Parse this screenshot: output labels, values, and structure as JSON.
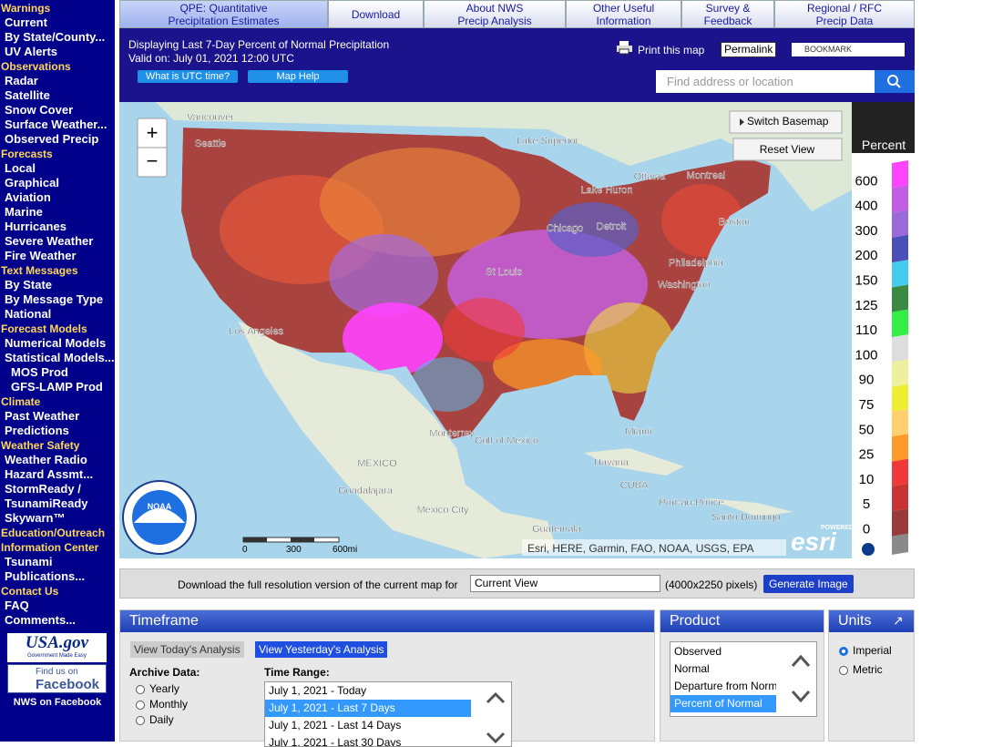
{
  "sidebar": {
    "sections": [
      {
        "title": "Warnings",
        "items": [
          "Current",
          "By State/County...",
          "UV Alerts"
        ]
      },
      {
        "title": "Observations",
        "items": [
          "Radar",
          "Satellite",
          "Snow Cover",
          "Surface Weather...",
          "Observed Precip"
        ]
      },
      {
        "title": "Forecasts",
        "items": [
          "Local",
          "Graphical",
          "Aviation",
          "Marine",
          "Hurricanes",
          "Severe Weather",
          "Fire Weather"
        ]
      },
      {
        "title": "Text Messages",
        "items": [
          "By State",
          "By Message Type",
          "National"
        ]
      },
      {
        "title": "Forecast Models",
        "items": [
          "Numerical Models",
          "Statistical Models..."
        ],
        "sub_items": [
          "MOS Prod",
          "GFS-LAMP Prod"
        ]
      },
      {
        "title": "Climate",
        "items": [
          "Past Weather",
          "Predictions"
        ]
      },
      {
        "title": "Weather Safety",
        "items": [
          "Weather Radio",
          "Hazard Assmt...",
          "StormReady / TsunamiReady",
          "Skywarn™"
        ]
      },
      {
        "title": "Education/Outreach",
        "items": []
      },
      {
        "title": "Information Center",
        "items": [
          "Tsunami",
          "Publications..."
        ]
      },
      {
        "title": "Contact Us",
        "items": [
          "FAQ",
          "Comments..."
        ]
      }
    ],
    "usagov": "USA.gov",
    "usagov_sub": "Government Made Easy",
    "facebook": [
      "Find us on",
      "Facebook"
    ],
    "facebook_caption": "NWS on Facebook"
  },
  "tabs": [
    [
      "QPE: Quantitative",
      "Precipitation Estimates"
    ],
    [
      "Download"
    ],
    [
      "About NWS",
      "Precip Analysis"
    ],
    [
      "Other Useful",
      "Information"
    ],
    [
      "Survey &",
      "Feedback"
    ],
    [
      "Regional / RFC",
      "Precip Data"
    ]
  ],
  "header": {
    "title": "Displaying Last 7-Day Percent of Normal Precipitation",
    "valid": "Valid on: July 01, 2021 12:00 UTC",
    "utc_button": "What is UTC time?",
    "help_button": "Map Help",
    "print": "Print this map",
    "permalink": "Permalink",
    "bookmark": "BOOKMARK",
    "search_placeholder": "Find address or location"
  },
  "map": {
    "zoom_in": "+",
    "zoom_out": "−",
    "switch_basemap": "Switch Basemap",
    "reset_view": "Reset View",
    "labels": [
      "Vancouver",
      "Seattle",
      "Lake Superior",
      "Ottawa",
      "Montreal",
      "Lake Huron",
      "Chicago",
      "Detroit",
      "Boston",
      "St Louis",
      "Philadelphia",
      "Washington",
      "Los Angeles",
      "Miami",
      "Gulf of Mexico",
      "MÉXICO",
      "Monterrey",
      "Havana",
      "Guadalajara",
      "Mexico City",
      "CUBA",
      "Port-au-Prince",
      "Santo Domingo",
      "Guatemala"
    ],
    "scale": [
      "0",
      "300",
      "600mi"
    ],
    "attribution": "Esri, HERE, Garmin, FAO, NOAA, USGS, EPA",
    "powered_by": "POWERED BY",
    "esri": "esri",
    "noaa": "NOAA"
  },
  "legend": {
    "title": "Percent",
    "items": [
      {
        "label": 600,
        "color": "#ff44ff"
      },
      {
        "label": 400,
        "color": "#c25ee6"
      },
      {
        "label": 300,
        "color": "#9a6ad8"
      },
      {
        "label": 200,
        "color": "#4a4fb8"
      },
      {
        "label": 150,
        "color": "#44ccee"
      },
      {
        "label": 125,
        "color": "#3a8a44"
      },
      {
        "label": 110,
        "color": "#33ee44"
      },
      {
        "label": 100,
        "color": "#dddddd"
      },
      {
        "label": 90,
        "color": "#eef0a0"
      },
      {
        "label": 75,
        "color": "#eeee33"
      },
      {
        "label": 50,
        "color": "#ffd070"
      },
      {
        "label": 25,
        "color": "#ff9a2a"
      },
      {
        "label": 10,
        "color": "#f03a3a"
      },
      {
        "label": 5,
        "color": "#c83434"
      },
      {
        "label": 0,
        "color": "#9a3a3a"
      }
    ]
  },
  "download": {
    "text": "Download the full resolution version of the current map for",
    "select": "Current View",
    "size": "(4000x2250 pixels)",
    "button": "Generate Image"
  },
  "timeframe": {
    "title": "Timeframe",
    "today": "View Today's Analysis",
    "yesterday": "View Yesterday's Analysis",
    "archive_label": "Archive Data:",
    "archive": [
      "Yearly",
      "Monthly",
      "Daily"
    ],
    "range_label": "Time Range:",
    "ranges": [
      "July 1, 2021 - Today",
      "July 1, 2021 - Last 7 Days",
      "July 1, 2021 - Last 14 Days",
      "July 1, 2021 - Last 30 Days"
    ],
    "selected_range": 1
  },
  "product": {
    "title": "Product",
    "items": [
      "Observed",
      "Normal",
      "Departure from Normal",
      "Percent of Normal"
    ],
    "selected": 3
  },
  "units": {
    "title": "Units",
    "arrow": "↗",
    "items": [
      "Imperial",
      "Metric"
    ],
    "selected": 0
  }
}
